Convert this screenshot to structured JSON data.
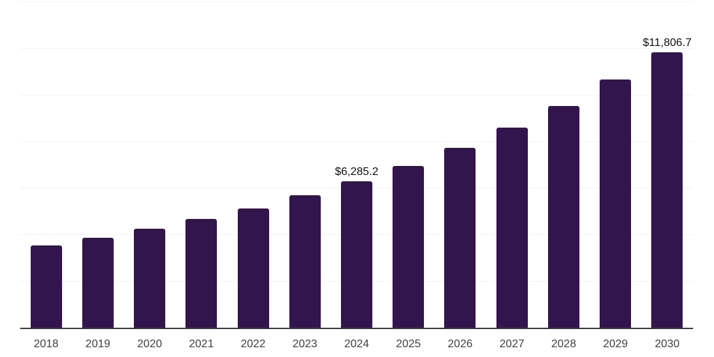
{
  "chart_data": {
    "type": "bar",
    "title": "",
    "xlabel": "",
    "ylabel": "",
    "categories": [
      "2018",
      "2019",
      "2020",
      "2021",
      "2022",
      "2023",
      "2024",
      "2025",
      "2026",
      "2027",
      "2028",
      "2029",
      "2030"
    ],
    "values": [
      3540,
      3870,
      4260,
      4680,
      5130,
      5670,
      6285.2,
      6950,
      7720,
      8600,
      9520,
      10640,
      11806.7
    ],
    "data_labels": {
      "2024": "$6,285.2",
      "2030": "$11,806.7"
    },
    "ylim": [
      0,
      14000
    ],
    "gridline_step": 2000,
    "grid": true,
    "legend": false,
    "y_tick_labels_visible": false,
    "colors": {
      "bar": "#33154E",
      "gridline": "#f3f3f3",
      "axis_line": "#3d3d3d",
      "value_label": "#101010",
      "tick_label": "#3f3f3f",
      "background": "#ffffff"
    }
  }
}
